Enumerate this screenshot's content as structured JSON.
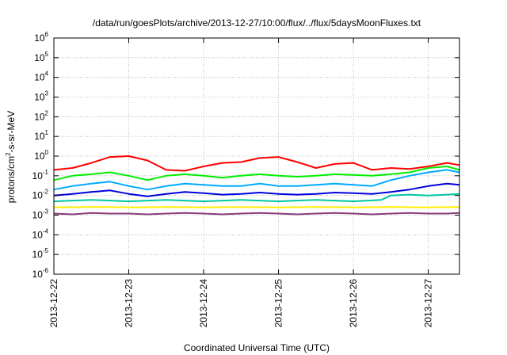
{
  "chart_data": {
    "type": "line",
    "title": "/data/run/goesPlots/archive/2013-12-27/10:00/flux/../flux/5daysMoonFluxes.txt",
    "xlabel": "Coordinated Universal Time (UTC)",
    "ylabel": {
      "prefix": "protons/cm",
      "sup": "2",
      "suffix": "-s-sr-MeV"
    },
    "y_scale": "log",
    "ylim": [
      1e-06,
      1000000.0
    ],
    "y_ticks": [
      {
        "base": "10",
        "exp": "-6",
        "value": 1e-06
      },
      {
        "base": "10",
        "exp": "-5",
        "value": 1e-05
      },
      {
        "base": "10",
        "exp": "-4",
        "value": 0.0001
      },
      {
        "base": "10",
        "exp": "-3",
        "value": 0.001
      },
      {
        "base": "10",
        "exp": "-2",
        "value": 0.01
      },
      {
        "base": "10",
        "exp": "-1",
        "value": 0.1
      },
      {
        "base": "10",
        "exp": "0",
        "value": 1
      },
      {
        "base": "10",
        "exp": "1",
        "value": 10
      },
      {
        "base": "10",
        "exp": "2",
        "value": 100
      },
      {
        "base": "10",
        "exp": "3",
        "value": 1000
      },
      {
        "base": "10",
        "exp": "4",
        "value": 10000
      },
      {
        "base": "10",
        "exp": "5",
        "value": 100000
      },
      {
        "base": "10",
        "exp": "6",
        "value": 1000000
      }
    ],
    "x_ticks": [
      "2013-12-22",
      "2013-12-23",
      "2013-12-24",
      "2013-12-25",
      "2013-12-26",
      "2013-12-27"
    ],
    "xlim": [
      "2013-12-22 00:00",
      "2013-12-27 10:00"
    ],
    "grid": true,
    "legend": "none",
    "series": [
      {
        "color": "#ff0000",
        "x": [
          "2013-12-22 00:00",
          "2013-12-22 06:00",
          "2013-12-22 12:00",
          "2013-12-22 18:00",
          "2013-12-23 00:00",
          "2013-12-23 06:00",
          "2013-12-23 12:00",
          "2013-12-23 18:00",
          "2013-12-24 00:00",
          "2013-12-24 06:00",
          "2013-12-24 12:00",
          "2013-12-24 18:00",
          "2013-12-25 00:00",
          "2013-12-25 06:00",
          "2013-12-25 12:00",
          "2013-12-25 18:00",
          "2013-12-26 00:00",
          "2013-12-26 06:00",
          "2013-12-26 12:00",
          "2013-12-26 18:00",
          "2013-12-27 00:00",
          "2013-12-27 06:00",
          "2013-12-27 10:00"
        ],
        "values": [
          0.2,
          0.25,
          0.45,
          0.9,
          1.0,
          0.6,
          0.2,
          0.18,
          0.3,
          0.45,
          0.5,
          0.8,
          0.9,
          0.5,
          0.25,
          0.4,
          0.45,
          0.2,
          0.25,
          0.22,
          0.3,
          0.45,
          0.35
        ]
      },
      {
        "color": "#00ee00",
        "x": [
          "2013-12-22 00:00",
          "2013-12-22 06:00",
          "2013-12-22 12:00",
          "2013-12-22 18:00",
          "2013-12-23 00:00",
          "2013-12-23 06:00",
          "2013-12-23 12:00",
          "2013-12-23 18:00",
          "2013-12-24 00:00",
          "2013-12-24 06:00",
          "2013-12-24 12:00",
          "2013-12-24 18:00",
          "2013-12-25 00:00",
          "2013-12-25 06:00",
          "2013-12-25 12:00",
          "2013-12-25 18:00",
          "2013-12-26 00:00",
          "2013-12-26 06:00",
          "2013-12-26 12:00",
          "2013-12-26 18:00",
          "2013-12-27 00:00",
          "2013-12-27 06:00",
          "2013-12-27 10:00"
        ],
        "values": [
          0.06,
          0.1,
          0.12,
          0.15,
          0.1,
          0.06,
          0.1,
          0.12,
          0.1,
          0.08,
          0.1,
          0.12,
          0.1,
          0.09,
          0.1,
          0.12,
          0.11,
          0.1,
          0.12,
          0.15,
          0.25,
          0.3,
          0.2
        ]
      },
      {
        "color": "#00aaff",
        "x": [
          "2013-12-22 00:00",
          "2013-12-22 06:00",
          "2013-12-22 12:00",
          "2013-12-22 18:00",
          "2013-12-23 00:00",
          "2013-12-23 06:00",
          "2013-12-23 12:00",
          "2013-12-23 18:00",
          "2013-12-24 00:00",
          "2013-12-24 06:00",
          "2013-12-24 12:00",
          "2013-12-24 18:00",
          "2013-12-25 00:00",
          "2013-12-25 06:00",
          "2013-12-25 12:00",
          "2013-12-25 18:00",
          "2013-12-26 00:00",
          "2013-12-26 06:00",
          "2013-12-26 12:00",
          "2013-12-26 18:00",
          "2013-12-27 00:00",
          "2013-12-27 06:00",
          "2013-12-27 10:00"
        ],
        "values": [
          0.02,
          0.03,
          0.04,
          0.05,
          0.03,
          0.02,
          0.03,
          0.04,
          0.035,
          0.03,
          0.03,
          0.04,
          0.03,
          0.03,
          0.035,
          0.04,
          0.035,
          0.03,
          0.06,
          0.1,
          0.15,
          0.2,
          0.15
        ]
      },
      {
        "color": "#0000dd",
        "x": [
          "2013-12-22 00:00",
          "2013-12-22 06:00",
          "2013-12-22 12:00",
          "2013-12-22 18:00",
          "2013-12-23 00:00",
          "2013-12-23 06:00",
          "2013-12-23 12:00",
          "2013-12-23 18:00",
          "2013-12-24 00:00",
          "2013-12-24 06:00",
          "2013-12-24 12:00",
          "2013-12-24 18:00",
          "2013-12-25 00:00",
          "2013-12-25 06:00",
          "2013-12-25 12:00",
          "2013-12-25 18:00",
          "2013-12-26 00:00",
          "2013-12-26 06:00",
          "2013-12-26 12:00",
          "2013-12-26 18:00",
          "2013-12-27 00:00",
          "2013-12-27 06:00",
          "2013-12-27 10:00"
        ],
        "values": [
          0.01,
          0.012,
          0.015,
          0.018,
          0.012,
          0.009,
          0.012,
          0.015,
          0.013,
          0.011,
          0.012,
          0.014,
          0.012,
          0.011,
          0.012,
          0.014,
          0.013,
          0.012,
          0.015,
          0.02,
          0.03,
          0.04,
          0.035
        ]
      },
      {
        "color": "#00c8a0",
        "x": [
          "2013-12-22 00:00",
          "2013-12-22 12:00",
          "2013-12-23 00:00",
          "2013-12-23 12:00",
          "2013-12-24 00:00",
          "2013-12-24 12:00",
          "2013-12-25 00:00",
          "2013-12-25 12:00",
          "2013-12-26 00:00",
          "2013-12-26 09:00",
          "2013-12-26 12:00",
          "2013-12-26 18:00",
          "2013-12-27 00:00",
          "2013-12-27 06:00",
          "2013-12-27 10:00"
        ],
        "values": [
          0.005,
          0.006,
          0.005,
          0.006,
          0.005,
          0.006,
          0.005,
          0.006,
          0.005,
          0.006,
          0.01,
          0.011,
          0.01,
          0.011,
          0.012
        ]
      },
      {
        "color": "#ffee00",
        "x": [
          "2013-12-22 00:00",
          "2013-12-22 12:00",
          "2013-12-23 00:00",
          "2013-12-23 12:00",
          "2013-12-24 00:00",
          "2013-12-24 12:00",
          "2013-12-25 00:00",
          "2013-12-25 12:00",
          "2013-12-26 00:00",
          "2013-12-26 12:00",
          "2013-12-27 00:00",
          "2013-12-27 10:00"
        ],
        "values": [
          0.0025,
          0.0026,
          0.0025,
          0.0026,
          0.0025,
          0.0026,
          0.0025,
          0.0026,
          0.0025,
          0.0026,
          0.0025,
          0.0026
        ]
      },
      {
        "color": "#8b3a7a",
        "x": [
          "2013-12-22 00:00",
          "2013-12-22 06:00",
          "2013-12-22 12:00",
          "2013-12-22 18:00",
          "2013-12-23 00:00",
          "2013-12-23 06:00",
          "2013-12-23 12:00",
          "2013-12-23 18:00",
          "2013-12-24 00:00",
          "2013-12-24 06:00",
          "2013-12-24 12:00",
          "2013-12-24 18:00",
          "2013-12-25 00:00",
          "2013-12-25 06:00",
          "2013-12-25 12:00",
          "2013-12-25 18:00",
          "2013-12-26 00:00",
          "2013-12-26 06:00",
          "2013-12-26 12:00",
          "2013-12-26 18:00",
          "2013-12-27 00:00",
          "2013-12-27 06:00",
          "2013-12-27 10:00"
        ],
        "values": [
          0.0012,
          0.0011,
          0.0013,
          0.0012,
          0.0012,
          0.0011,
          0.0012,
          0.0013,
          0.0012,
          0.0011,
          0.0012,
          0.0013,
          0.0012,
          0.0011,
          0.0012,
          0.0013,
          0.0012,
          0.0011,
          0.0012,
          0.0013,
          0.0012,
          0.0012,
          0.0013
        ]
      }
    ]
  }
}
